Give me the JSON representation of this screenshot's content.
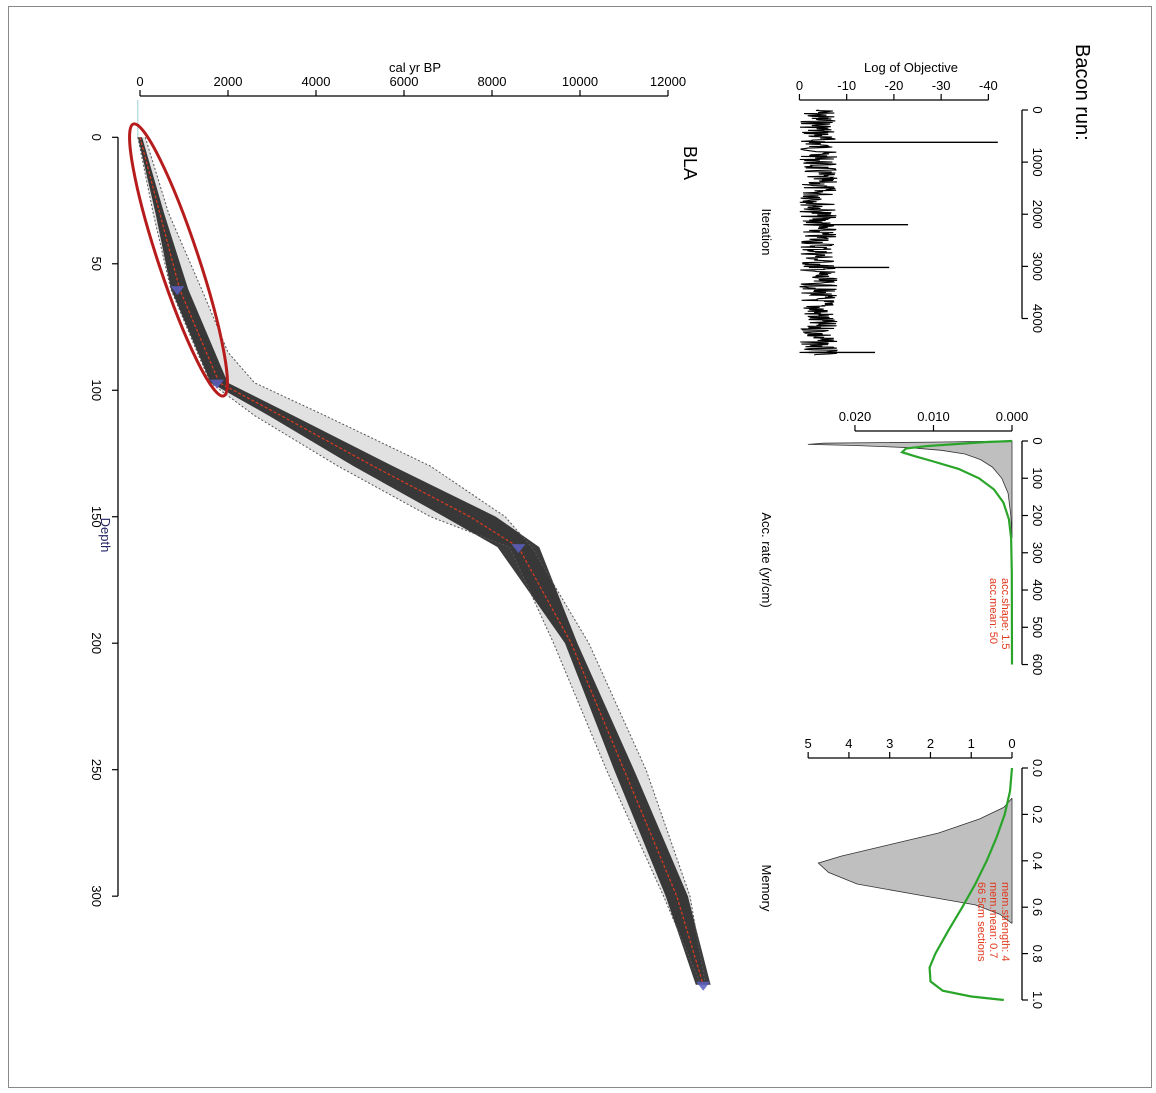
{
  "page_title": "Bacon run:",
  "chart_data": [
    {
      "type": "line",
      "panel": "iterations",
      "xlabel": "Iteration",
      "ylabel": "Log of Objective",
      "xlim": [
        0,
        4700
      ],
      "ylim": [
        -45,
        2
      ],
      "x_ticks": [
        0,
        1000,
        2000,
        3000,
        4000
      ],
      "y_ticks": [
        -40,
        -30,
        -20,
        -10,
        0
      ],
      "spikes": [
        {
          "x": 620,
          "y": -42
        },
        {
          "x": 2200,
          "y": -23
        },
        {
          "x": 3020,
          "y": -19
        },
        {
          "x": 4650,
          "y": -16
        }
      ],
      "band": {
        "min": -8,
        "max": 0
      }
    },
    {
      "type": "area",
      "panel": "accumulation",
      "xlabel": "Acc. rate (yr/cm)",
      "xlim": [
        0,
        620
      ],
      "ylim": [
        0,
        0.027
      ],
      "x_ticks": [
        0,
        100,
        200,
        300,
        400,
        500,
        600
      ],
      "y_ticks": [
        0.0,
        0.01,
        0.02
      ],
      "y_tick_labels": [
        "0.000",
        "0.010",
        "0.020"
      ],
      "annotations": [
        "acc.shape:  1.5",
        "acc.mean:  50"
      ],
      "posterior": [
        [
          0,
          0.0005
        ],
        [
          3,
          0.01
        ],
        [
          6,
          0.024
        ],
        [
          9,
          0.026
        ],
        [
          12,
          0.02
        ],
        [
          18,
          0.013
        ],
        [
          25,
          0.009
        ],
        [
          35,
          0.006
        ],
        [
          50,
          0.004
        ],
        [
          70,
          0.0025
        ],
        [
          100,
          0.0013
        ],
        [
          140,
          0.0005
        ],
        [
          200,
          0.00015
        ],
        [
          260,
          0.0
        ]
      ],
      "prior": [
        [
          0,
          0.0
        ],
        [
          3,
          0.0035
        ],
        [
          8,
          0.007
        ],
        [
          14,
          0.011
        ],
        [
          20,
          0.0135
        ],
        [
          30,
          0.014
        ],
        [
          40,
          0.0125
        ],
        [
          55,
          0.01
        ],
        [
          75,
          0.0068
        ],
        [
          100,
          0.0042
        ],
        [
          130,
          0.0023
        ],
        [
          165,
          0.0011
        ],
        [
          210,
          0.0004
        ],
        [
          260,
          0.00012
        ],
        [
          350,
          2e-05
        ],
        [
          600,
          0.0
        ]
      ]
    },
    {
      "type": "area",
      "panel": "memory",
      "xlabel": "Memory",
      "xlim": [
        0,
        1.0
      ],
      "ylim": [
        0,
        5.2
      ],
      "x_ticks": [
        0.0,
        0.2,
        0.4,
        0.6,
        0.8,
        1.0
      ],
      "x_tick_labels": [
        "0.0",
        "0.2",
        "0.4",
        "0.6",
        "0.8",
        "1.0"
      ],
      "y_ticks": [
        0,
        1,
        2,
        3,
        4,
        5
      ],
      "annotations": [
        "mem.strength:  4",
        "mem.mean:  0.7",
        "66  5cm  sections"
      ],
      "posterior": [
        [
          0.13,
          0
        ],
        [
          0.17,
          0.2
        ],
        [
          0.22,
          0.8
        ],
        [
          0.28,
          1.8
        ],
        [
          0.33,
          3.0
        ],
        [
          0.38,
          4.2
        ],
        [
          0.41,
          4.75
        ],
        [
          0.45,
          4.5
        ],
        [
          0.5,
          3.8
        ],
        [
          0.55,
          2.2
        ],
        [
          0.59,
          0.9
        ],
        [
          0.63,
          0.3
        ],
        [
          0.67,
          0
        ]
      ],
      "prior": [
        [
          0.0,
          0.0
        ],
        [
          0.1,
          0.05
        ],
        [
          0.2,
          0.18
        ],
        [
          0.3,
          0.38
        ],
        [
          0.4,
          0.62
        ],
        [
          0.5,
          0.9
        ],
        [
          0.6,
          1.22
        ],
        [
          0.7,
          1.56
        ],
        [
          0.8,
          1.88
        ],
        [
          0.86,
          2.02
        ],
        [
          0.92,
          2.0
        ],
        [
          0.96,
          1.7
        ],
        [
          0.985,
          1.0
        ],
        [
          1.0,
          0.2
        ]
      ]
    },
    {
      "type": "line",
      "panel": "age-depth",
      "title": "BLA",
      "xlabel": "Depth",
      "ylabel": "cal yr BP",
      "xlim": [
        -10,
        345
      ],
      "ylim": [
        -300,
        13000
      ],
      "x_ticks": [
        0,
        50,
        100,
        150,
        200,
        250,
        300
      ],
      "y_ticks": [
        0,
        2000,
        4000,
        6000,
        8000,
        10000,
        12000
      ],
      "median_model": [
        [
          0,
          0
        ],
        [
          30,
          450
        ],
        [
          60,
          900
        ],
        [
          97,
          1800
        ],
        [
          110,
          3200
        ],
        [
          130,
          5300
        ],
        [
          150,
          7500
        ],
        [
          162,
          8600
        ],
        [
          200,
          9800
        ],
        [
          250,
          11000
        ],
        [
          300,
          12200
        ],
        [
          335,
          12800
        ]
      ],
      "envelope_min": [
        [
          0,
          -50
        ],
        [
          30,
          300
        ],
        [
          60,
          700
        ],
        [
          85,
          1300
        ],
        [
          97,
          1600
        ],
        [
          110,
          2600
        ],
        [
          130,
          4500
        ],
        [
          150,
          6600
        ],
        [
          162,
          8400
        ],
        [
          200,
          9400
        ],
        [
          250,
          10600
        ],
        [
          300,
          11900
        ],
        [
          335,
          12750
        ]
      ],
      "envelope_max": [
        [
          0,
          120
        ],
        [
          30,
          650
        ],
        [
          60,
          1400
        ],
        [
          85,
          2000
        ],
        [
          97,
          2600
        ],
        [
          110,
          4200
        ],
        [
          130,
          6600
        ],
        [
          150,
          8300
        ],
        [
          162,
          8900
        ],
        [
          200,
          10200
        ],
        [
          250,
          11500
        ],
        [
          300,
          12500
        ],
        [
          335,
          12850
        ]
      ],
      "dates": [
        [
          60,
          850
        ],
        [
          97,
          1750
        ],
        [
          162,
          8600
        ],
        [
          335,
          12800
        ]
      ]
    }
  ],
  "colors": {
    "objective_line": "#000000",
    "posterior_fill": "#bfbfbf",
    "prior_line": "#2aa52a",
    "median_line": "#e03a1e",
    "envelope_line": "#555555",
    "date_marker": "#5a5fbf",
    "highlight_ellipse": "#b71c1c",
    "annotation_text": "#e03a1e",
    "depth_title": "#222266"
  }
}
